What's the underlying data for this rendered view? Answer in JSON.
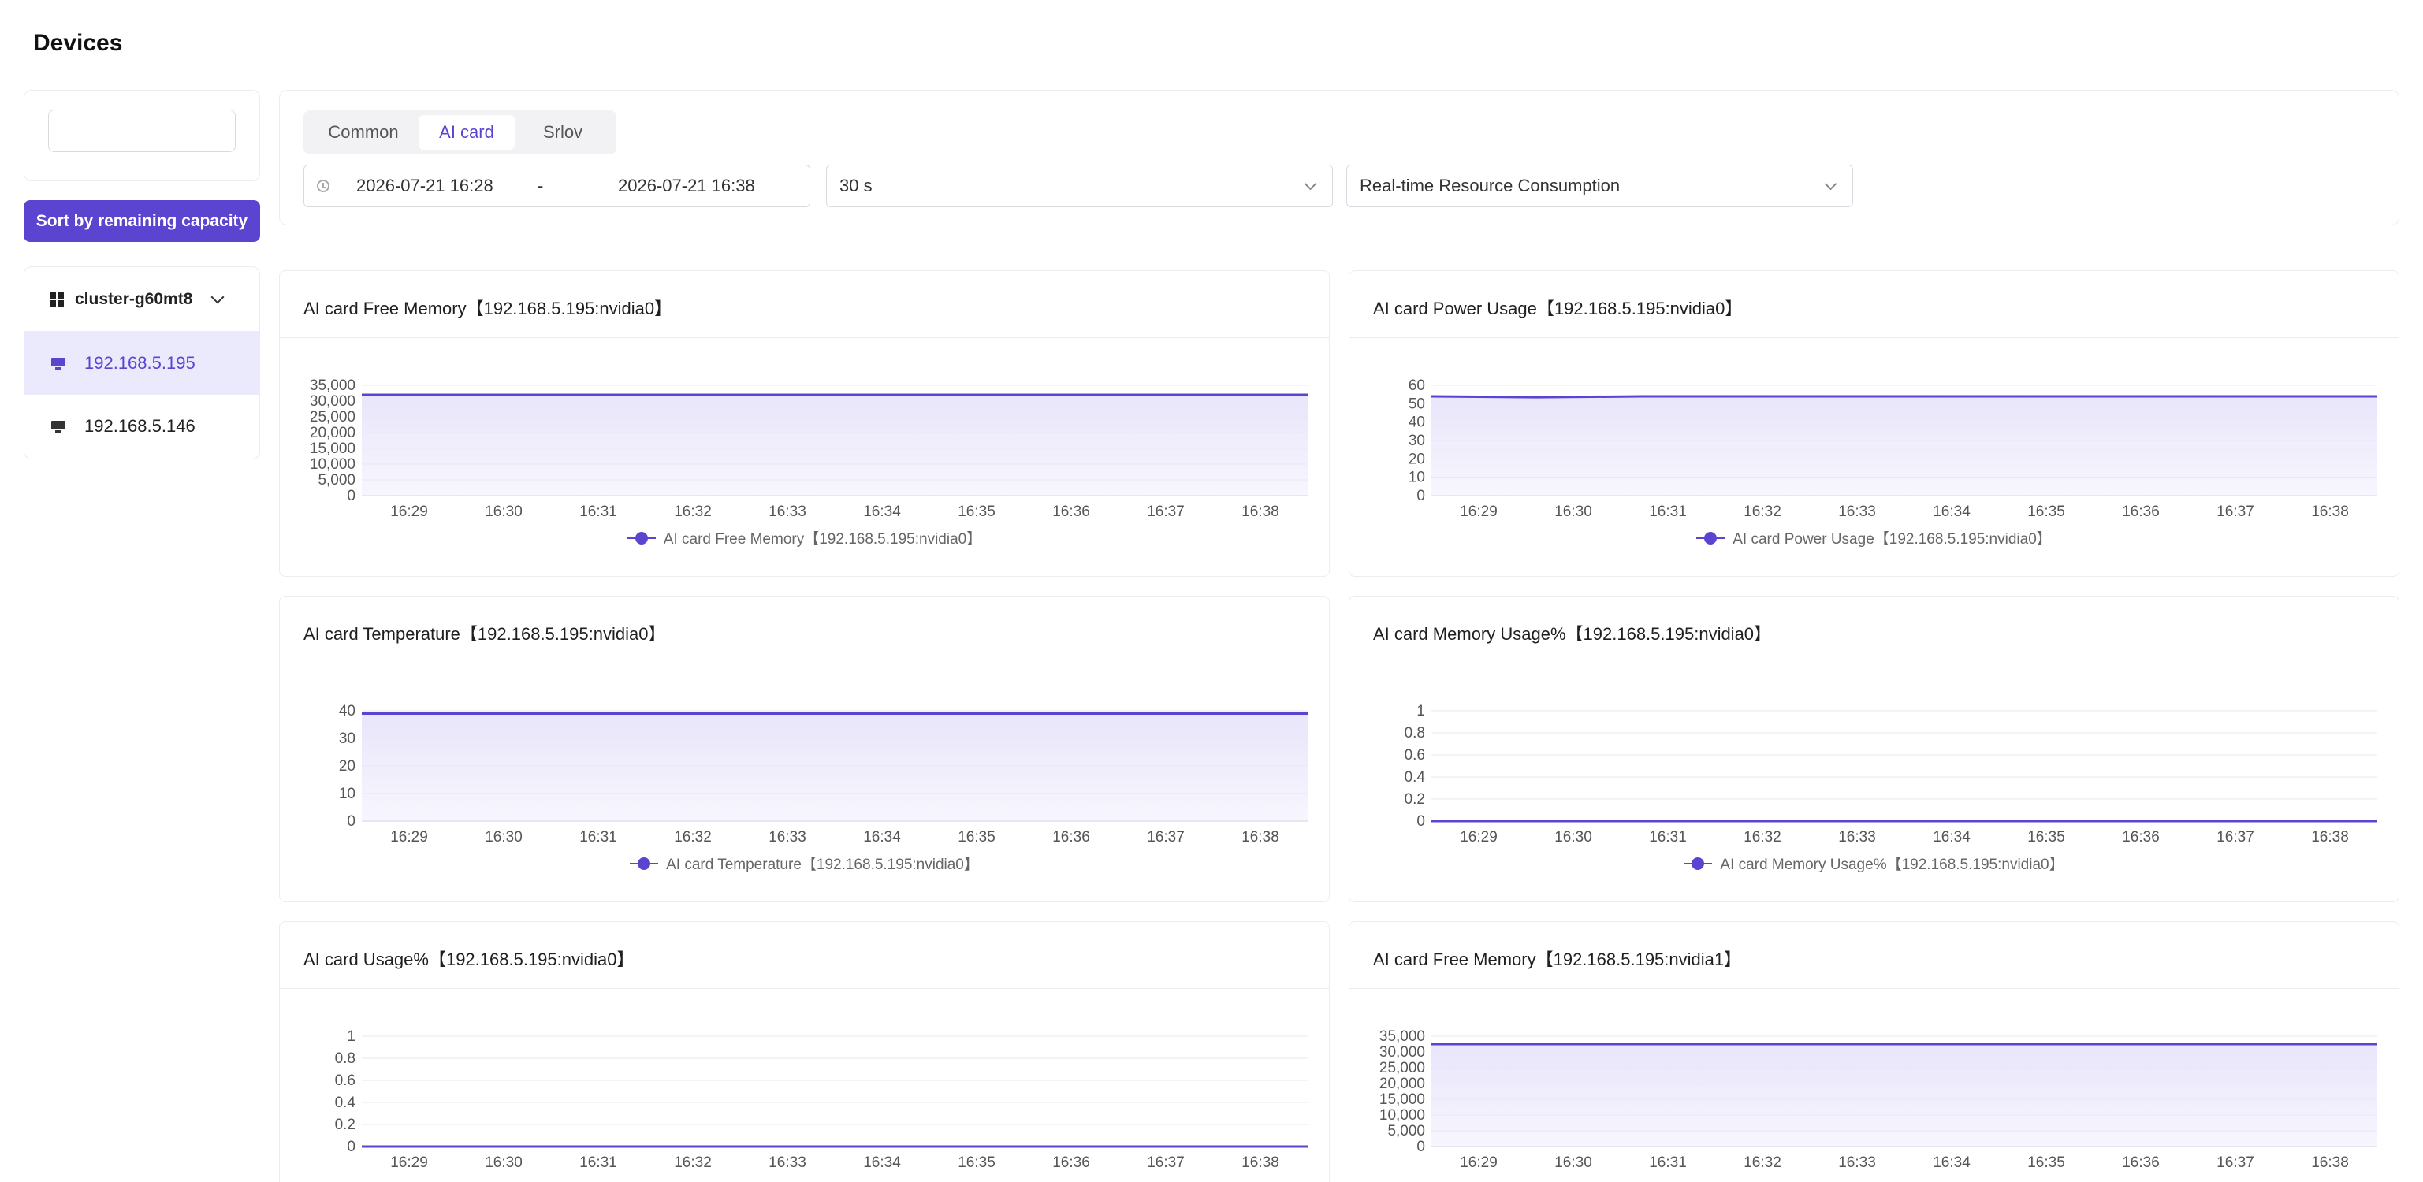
{
  "page": {
    "title": "Devices"
  },
  "sidebar": {
    "search_placeholder": "",
    "sort_button_label": "Sort by remaining capacity",
    "cluster_label": "cluster-g60mt8",
    "devices": [
      "192.168.5.195",
      "192.168.5.146"
    ],
    "active_device": "192.168.5.195"
  },
  "filters": {
    "tabs": [
      "Common",
      "AI card",
      "Srlov"
    ],
    "active_tab": "AI card",
    "start_time": "2026-07-21 16:28",
    "separator": "-",
    "end_time": "2026-07-21 16:38",
    "interval": "30 s",
    "metric_type": "Real-time Resource Consumption"
  },
  "colors": {
    "accent": "#5b45d0",
    "area_fill": "#e9e5fb",
    "active_row": "#ebeafd"
  },
  "chart_data": [
    {
      "type": "area",
      "title": "AI card Free Memory【192.168.5.195:nvidia0】",
      "x": [
        "16:29",
        "16:30",
        "16:31",
        "16:32",
        "16:33",
        "16:34",
        "16:35",
        "16:36",
        "16:37",
        "16:38"
      ],
      "yticks": [
        "0",
        "5,000",
        "10,000",
        "15,000",
        "20,000",
        "25,000",
        "30,000",
        "35,000"
      ],
      "ylim": [
        0,
        35000
      ],
      "series": [
        {
          "name": "AI card Free Memory【192.168.5.195:nvidia0】",
          "values": [
            32000,
            32000,
            32000,
            32000,
            32000,
            32000,
            32000,
            32000,
            32000,
            32000
          ]
        }
      ],
      "legend": "AI card Free Memory【192.168.5.195:nvidia0】",
      "grid": true
    },
    {
      "type": "area",
      "title": "AI card Power Usage【192.168.5.195:nvidia0】",
      "x": [
        "16:29",
        "16:30",
        "16:31",
        "16:32",
        "16:33",
        "16:34",
        "16:35",
        "16:36",
        "16:37",
        "16:38"
      ],
      "yticks": [
        "0",
        "10",
        "20",
        "30",
        "40",
        "50",
        "60"
      ],
      "ylim": [
        0,
        60
      ],
      "series": [
        {
          "name": "AI card Power Usage【192.168.5.195:nvidia0】",
          "values": [
            54,
            53.5,
            54,
            54,
            54,
            54,
            54,
            54,
            54,
            54
          ]
        }
      ],
      "legend": "AI card Power Usage【192.168.5.195:nvidia0】",
      "grid": true
    },
    {
      "type": "area",
      "title": "AI card Temperature【192.168.5.195:nvidia0】",
      "x": [
        "16:29",
        "16:30",
        "16:31",
        "16:32",
        "16:33",
        "16:34",
        "16:35",
        "16:36",
        "16:37",
        "16:38"
      ],
      "yticks": [
        "0",
        "10",
        "20",
        "30",
        "40"
      ],
      "ylim": [
        0,
        40
      ],
      "series": [
        {
          "name": "AI card Temperature【192.168.5.195:nvidia0】",
          "values": [
            39,
            39,
            39,
            39,
            39,
            39,
            39,
            39,
            39,
            39
          ]
        }
      ],
      "legend": "AI card Temperature【192.168.5.195:nvidia0】",
      "grid": true
    },
    {
      "type": "area",
      "title": "AI card Memory Usage%【192.168.5.195:nvidia0】",
      "x": [
        "16:29",
        "16:30",
        "16:31",
        "16:32",
        "16:33",
        "16:34",
        "16:35",
        "16:36",
        "16:37",
        "16:38"
      ],
      "yticks": [
        "0",
        "0.2",
        "0.4",
        "0.6",
        "0.8",
        "1"
      ],
      "ylim": [
        0,
        1
      ],
      "series": [
        {
          "name": "AI card Memory Usage%【192.168.5.195:nvidia0】",
          "values": [
            0,
            0,
            0,
            0,
            0,
            0,
            0,
            0,
            0,
            0
          ]
        }
      ],
      "legend": "AI card Memory Usage%【192.168.5.195:nvidia0】",
      "grid": true
    },
    {
      "type": "area",
      "title": "AI card Usage%【192.168.5.195:nvidia0】",
      "x": [
        "16:29",
        "16:30",
        "16:31",
        "16:32",
        "16:33",
        "16:34",
        "16:35",
        "16:36",
        "16:37",
        "16:38"
      ],
      "yticks": [
        "0",
        "0.2",
        "0.4",
        "0.6",
        "0.8",
        "1"
      ],
      "ylim": [
        0,
        1
      ],
      "series": [
        {
          "values": [
            0,
            0,
            0,
            0,
            0,
            0,
            0,
            0,
            0,
            0
          ]
        }
      ],
      "legend": "",
      "grid": true
    },
    {
      "type": "area",
      "title": "AI card Free Memory【192.168.5.195:nvidia1】",
      "x": [
        "16:29",
        "16:30",
        "16:31",
        "16:32",
        "16:33",
        "16:34",
        "16:35",
        "16:36",
        "16:37",
        "16:38"
      ],
      "yticks": [
        "0",
        "5,000",
        "10,000",
        "15,000",
        "20,000",
        "25,000",
        "30,000",
        "35,000"
      ],
      "ylim": [
        0,
        35000
      ],
      "series": [
        {
          "values": [
            32500,
            32500,
            32500,
            32500,
            32500,
            32500,
            32500,
            32500,
            32500,
            32500
          ]
        }
      ],
      "legend": "",
      "grid": true
    }
  ]
}
